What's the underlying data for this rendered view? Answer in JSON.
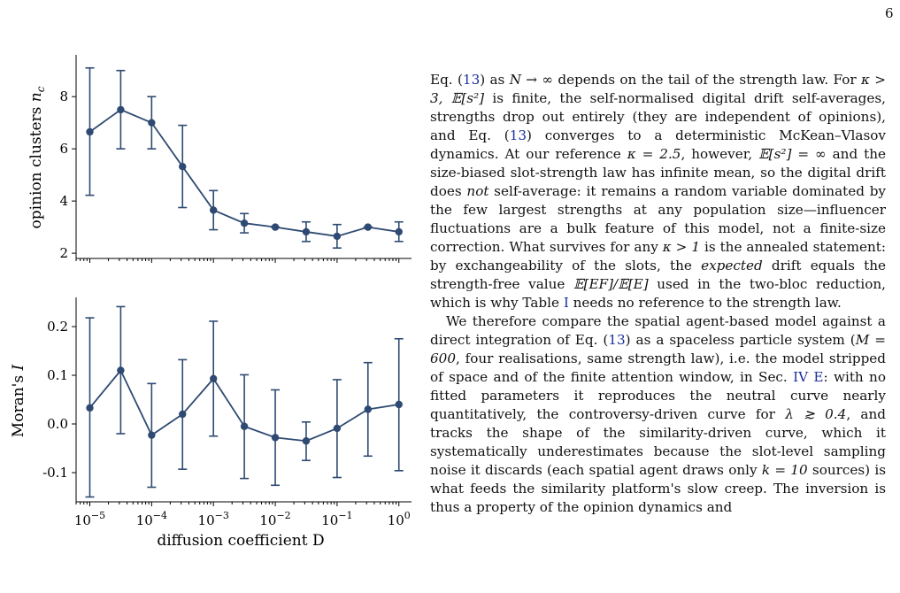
{
  "page": {
    "number": "6"
  },
  "figure": {
    "panels": [
      {
        "ylabel": "opinion clusters n_c"
      },
      {
        "ylabel": "Moran's I"
      }
    ],
    "xlabel": "diffusion coefficient D"
  },
  "chart_data": [
    {
      "type": "line",
      "title": "",
      "xlabel": "",
      "ylabel": "opinion clusters n_c",
      "xscale": "log",
      "xlim": [
        6e-06,
        1.6
      ],
      "ylim": [
        1.8,
        9.6
      ],
      "yticks": [
        2,
        4,
        6,
        8
      ],
      "ytick_labels": [
        "2",
        "4",
        "6",
        "8"
      ],
      "x": [
        1e-05,
        3.16e-05,
        0.0001,
        0.000316,
        0.001,
        0.00316,
        0.01,
        0.0316,
        0.1,
        0.316,
        1
      ],
      "series": [
        {
          "y": [
            6.65,
            7.5,
            7.0,
            5.32,
            3.65,
            3.15,
            3.0,
            2.82,
            2.65,
            3.0,
            2.82
          ],
          "yerr_low": [
            4.22,
            6.0,
            6.0,
            3.75,
            2.9,
            2.78,
            3.0,
            2.45,
            2.2,
            3.0,
            2.45
          ],
          "yerr_high": [
            9.1,
            9.0,
            8.0,
            6.9,
            4.4,
            3.52,
            3.0,
            3.2,
            3.1,
            3.0,
            3.2
          ]
        }
      ],
      "color": "#2e4a72",
      "grid": false
    },
    {
      "type": "line",
      "title": "",
      "xlabel": "diffusion coefficient D",
      "ylabel": "Moran's I",
      "xscale": "log",
      "xlim": [
        6e-06,
        1.6
      ],
      "ylim": [
        -0.16,
        0.26
      ],
      "yticks": [
        -0.1,
        0.0,
        0.1,
        0.2
      ],
      "ytick_labels": [
        "-0.1",
        "0.0",
        "0.1",
        "0.2"
      ],
      "xticks": [
        1e-05,
        0.0001,
        0.001,
        0.01,
        0.1,
        1
      ],
      "xtick_labels": [
        [
          "10",
          "−5"
        ],
        [
          "10",
          "−4"
        ],
        [
          "10",
          "−3"
        ],
        [
          "10",
          "−2"
        ],
        [
          "10",
          "−1"
        ],
        [
          "10",
          "0"
        ]
      ],
      "x": [
        1e-05,
        3.16e-05,
        0.0001,
        0.000316,
        0.001,
        0.00316,
        0.01,
        0.0316,
        0.1,
        0.316,
        1
      ],
      "series": [
        {
          "y": [
            0.033,
            0.11,
            -0.023,
            0.02,
            0.093,
            -0.005,
            -0.028,
            -0.035,
            -0.009,
            0.03,
            0.04
          ],
          "yerr_low": [
            -0.15,
            -0.02,
            -0.13,
            -0.093,
            -0.025,
            -0.112,
            -0.126,
            -0.075,
            -0.11,
            -0.066,
            -0.096
          ],
          "yerr_high": [
            0.218,
            0.241,
            0.083,
            0.132,
            0.211,
            0.101,
            0.07,
            0.004,
            0.091,
            0.126,
            0.175
          ]
        }
      ],
      "color": "#2e4a72",
      "grid": false
    }
  ],
  "paragraphs": [
    [
      {
        "t": "Eq. ("
      },
      {
        "t": "13",
        "c": "link"
      },
      {
        "t": ") as "
      },
      {
        "t": "N → ∞",
        "c": "m"
      },
      {
        "t": " depends on the tail of the strength law. For "
      },
      {
        "t": "κ > 3, 𝔼[s²]",
        "c": "m"
      },
      {
        "t": " is finite, the self-normalised digital drift self-averages, strengths drop out entirely (they are independent of opinions), and Eq. ("
      },
      {
        "t": "13",
        "c": "link"
      },
      {
        "t": ") converges to a deterministic McKean–Vlasov dynamics. At our reference "
      },
      {
        "t": "κ = 2.5",
        "c": "m"
      },
      {
        "t": ", however, "
      },
      {
        "t": "𝔼[s²] = ∞",
        "c": "m"
      },
      {
        "t": " and the size-biased slot-strength law has infinite mean, so the digital drift does "
      },
      {
        "t": "not",
        "c": "m"
      },
      {
        "t": " self-average: it remains a random variable dominated by the few largest strengths at any population size—influencer fluctuations are a bulk feature of this model, not a finite-size correction. What survives for any "
      },
      {
        "t": "κ > 1",
        "c": "m"
      },
      {
        "t": " is the annealed statement: by exchangeability of the slots, the "
      },
      {
        "t": "expected",
        "c": "m"
      },
      {
        "t": " drift equals the strength-free value "
      },
      {
        "t": "𝔼[EF]/𝔼[E]",
        "c": "m"
      },
      {
        "t": " used in the two-bloc reduction, which is why Table "
      },
      {
        "t": "I",
        "c": "link"
      },
      {
        "t": " needs no reference to the strength law."
      }
    ],
    [
      {
        "t": "We therefore compare the spatial agent-based model against a direct integration of Eq. ("
      },
      {
        "t": "13",
        "c": "link"
      },
      {
        "t": ") as a spaceless particle system ("
      },
      {
        "t": "M = 600",
        "c": "m"
      },
      {
        "t": ", four realisations, same strength law), i.e. the model stripped of space and of the finite attention window, in Sec. "
      },
      {
        "t": "IV E",
        "c": "link"
      },
      {
        "t": ": with no fitted parameters it reproduces the neutral curve nearly quantitatively, the controversy-driven curve for "
      },
      {
        "t": "λ ≳ 0.4",
        "c": "m"
      },
      {
        "t": ", and tracks the shape of the similarity-driven curve, which it systematically underestimates because the slot-level sampling noise it discards (each spatial agent draws only "
      },
      {
        "t": "k = 10",
        "c": "m"
      },
      {
        "t": " sources) is what feeds the similarity platform's slow creep. The inversion is thus a property of the opinion dynamics and"
      }
    ]
  ]
}
